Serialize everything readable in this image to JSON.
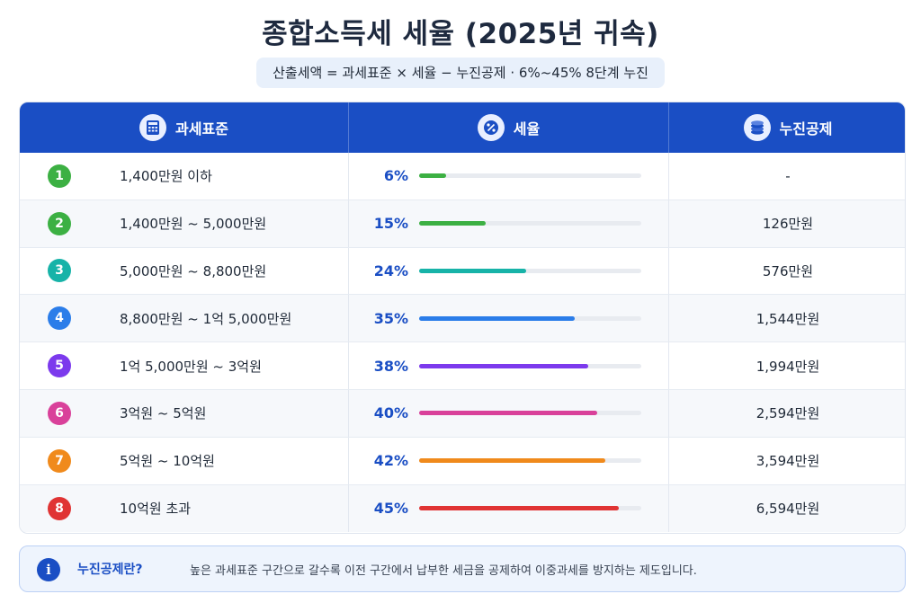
{
  "title": "종합소득세 세율 (2025년 귀속)",
  "formula": "산출세액 = 과세표준 × 세율 − 누진공제 · 6%~45% 8단계 누진",
  "headers": {
    "bracket": "과세표준",
    "rate": "세율",
    "deduction": "누진공제"
  },
  "header_icons": [
    "calculator-icon",
    "percent-icon",
    "coins-icon"
  ],
  "rows": [
    {
      "num": "1",
      "bracket": "1,400만원 이하",
      "rate": "6%",
      "rate_value": 6,
      "deduction": "-",
      "color": "#3cb043"
    },
    {
      "num": "2",
      "bracket": "1,400만원 ~ 5,000만원",
      "rate": "15%",
      "rate_value": 15,
      "deduction": "126만원",
      "color": "#3cb043"
    },
    {
      "num": "3",
      "bracket": "5,000만원 ~ 8,800만원",
      "rate": "24%",
      "rate_value": 24,
      "deduction": "576만원",
      "color": "#17b3a8"
    },
    {
      "num": "4",
      "bracket": "8,800만원 ~ 1억 5,000만원",
      "rate": "35%",
      "rate_value": 35,
      "deduction": "1,544만원",
      "color": "#2b7de9"
    },
    {
      "num": "5",
      "bracket": "1억 5,000만원 ~ 3억원",
      "rate": "38%",
      "rate_value": 38,
      "deduction": "1,994만원",
      "color": "#7c3aed"
    },
    {
      "num": "6",
      "bracket": "3억원 ~ 5억원",
      "rate": "40%",
      "rate_value": 40,
      "deduction": "2,594만원",
      "color": "#d9419a"
    },
    {
      "num": "7",
      "bracket": "5억원 ~ 10억원",
      "rate": "42%",
      "rate_value": 42,
      "deduction": "3,594만원",
      "color": "#f08a1c"
    },
    {
      "num": "8",
      "bracket": "10억원 초과",
      "rate": "45%",
      "rate_value": 45,
      "deduction": "6,594만원",
      "color": "#e03434"
    }
  ],
  "note": {
    "icon": "info-icon",
    "label": "누진공제란?",
    "text": "높은 과세표준 구간으로 갈수록 이전 구간에서 납부한 세금을 공제하여 이중과세를 방지하는 제도입니다."
  }
}
